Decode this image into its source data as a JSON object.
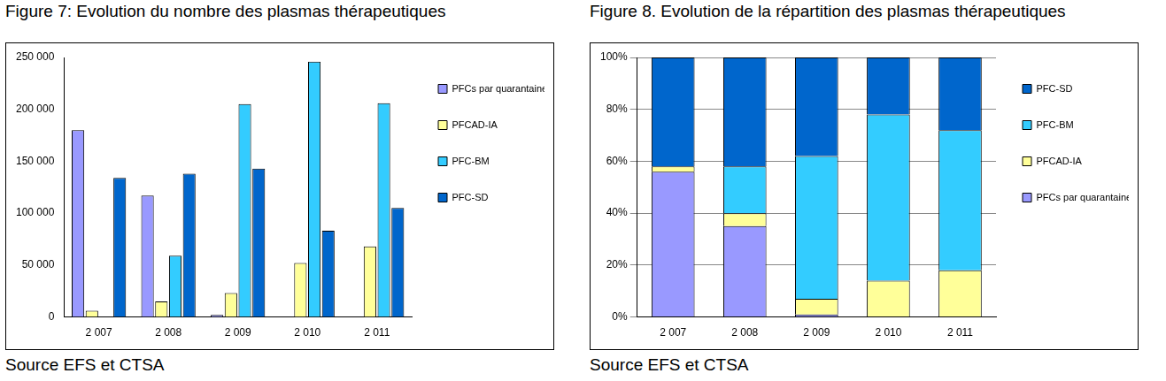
{
  "chart_data": [
    {
      "type": "bar",
      "title": "Figure 7: Evolution du nombre des plasmas thérapeutiques",
      "source": "Source EFS et CTSA",
      "categories": [
        "2 007",
        "2 008",
        "2 009",
        "2 010",
        "2 011"
      ],
      "series": [
        {
          "name": "PFCs par quarantaine",
          "color": "#9999ff",
          "values": [
            180000,
            117000,
            2000,
            0,
            0
          ]
        },
        {
          "name": "PFCAD-IA",
          "color": "#ffff99",
          "values": [
            6000,
            15000,
            23000,
            52000,
            68000
          ]
        },
        {
          "name": "PFC-BM",
          "color": "#33ccff",
          "values": [
            0,
            59000,
            205000,
            246000,
            206000
          ]
        },
        {
          "name": "PFC-SD",
          "color": "#0066cc",
          "values": [
            134000,
            138000,
            143000,
            83000,
            105000
          ]
        }
      ],
      "ylim": [
        0,
        250000
      ],
      "yticks": [
        0,
        {
          "value": 50000,
          "label": "50 000"
        },
        {
          "value": 100000,
          "label": "100 000"
        },
        {
          "value": 150000,
          "label": "150 000"
        },
        {
          "value": 200000,
          "label": "200 000"
        },
        {
          "value": 250000,
          "label": "250 000"
        }
      ],
      "grid": false,
      "legend": "right"
    },
    {
      "type": "bar",
      "title": "Figure 8. Evolution de la répartition des plasmas thérapeutiques",
      "source": "Source EFS et CTSA",
      "categories": [
        "2 007",
        "2 008",
        "2 009",
        "2 010",
        "2 011"
      ],
      "series": [
        {
          "name": "PFCs par quarantaine",
          "color": "#9999ff",
          "values": [
            56,
            35,
            1,
            0,
            0
          ]
        },
        {
          "name": "PFCAD-IA",
          "color": "#ffff99",
          "values": [
            2,
            5,
            6,
            14,
            18
          ]
        },
        {
          "name": "PFC-BM",
          "color": "#33ccff",
          "values": [
            0,
            18,
            55,
            64,
            54
          ]
        },
        {
          "name": "PFC-SD",
          "color": "#0066cc",
          "values": [
            42,
            42,
            38,
            22,
            28
          ]
        }
      ],
      "ylim": [
        0,
        100
      ],
      "yticks": [
        {
          "value": 0,
          "label": "0%"
        },
        {
          "value": 20,
          "label": "20%"
        },
        {
          "value": 40,
          "label": "40%"
        },
        {
          "value": 60,
          "label": "60%"
        },
        {
          "value": 80,
          "label": "80%"
        },
        {
          "value": 100,
          "label": "100%"
        }
      ],
      "grid": true,
      "stacked": true,
      "legend": "right"
    }
  ]
}
